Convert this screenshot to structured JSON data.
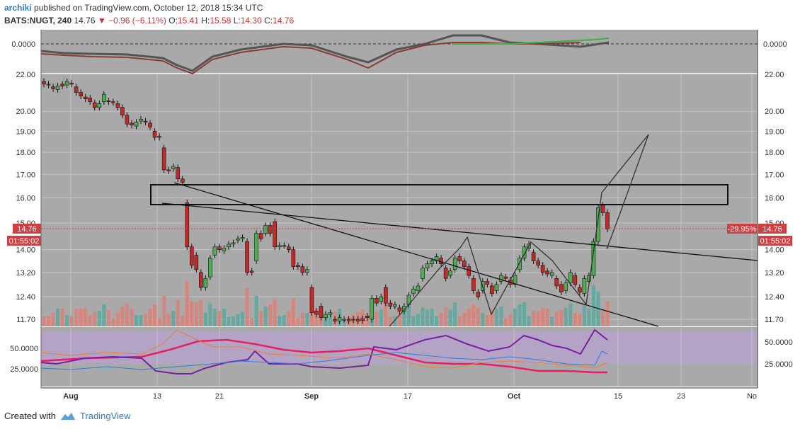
{
  "header": {
    "user": "archiki",
    "published": "published on TradingView.com, October 12, 2018 15:34 UTC",
    "symbol": "BATS:NUGT, 240",
    "last": "14.76",
    "change": "−0.96 (−6.11%)",
    "o_label": "O:",
    "o": "15.41",
    "h_label": "H:",
    "h": "15.58",
    "l_label": "L:",
    "l": "14.30",
    "c_label": "C:",
    "c": "14.76"
  },
  "footer": {
    "created_with": "Created with",
    "brand": "TradingView"
  },
  "colors": {
    "panel_bg": "#a9a9a9",
    "up_candle": "#4caf50",
    "down_candle": "#c62828",
    "vol_up": "#5fa89e",
    "vol_down": "#d9837a",
    "rsi_band": "#b39ddb",
    "price_line": "#d04040"
  },
  "chart_data": {
    "type": "candlestick",
    "symbol": "BATS:NUGT",
    "interval": "240",
    "x_tick_labels": [
      "Aug",
      "13",
      "21",
      "Sep",
      "17",
      "Oct",
      "15",
      "23",
      "No"
    ],
    "y_tick_labels": [
      "22.00",
      "20.00",
      "19.00",
      "18.00",
      "17.00",
      "16.00",
      "15.00",
      "14.00",
      "13.20",
      "12.40",
      "11.70"
    ],
    "ylim": [
      11.5,
      22.2
    ],
    "scale": "log",
    "last_price_label": "14.76",
    "countdown_label": "01:55:02",
    "change_badge": "-29.95%",
    "top_indicator": {
      "zero_label": "0.0000"
    },
    "bottom_indicator": {
      "labels": [
        "50.0000",
        "25.0000"
      ],
      "band": [
        25,
        55
      ]
    },
    "candles": [
      [
        21.6,
        21.45
      ],
      [
        21.45,
        21.4
      ],
      [
        21.3,
        21.2
      ],
      [
        21.15,
        21.35
      ],
      [
        21.45,
        21.35
      ],
      [
        21.4,
        21.6
      ],
      [
        21.5,
        21.45
      ],
      [
        21.3,
        21.0
      ],
      [
        21.0,
        20.8
      ],
      [
        20.75,
        20.65
      ],
      [
        20.7,
        20.5
      ],
      [
        20.45,
        20.2
      ],
      [
        20.2,
        20.4
      ],
      [
        20.5,
        20.9
      ],
      [
        20.55,
        20.5
      ],
      [
        20.5,
        20.45
      ],
      [
        20.4,
        20.2
      ],
      [
        20.2,
        19.8
      ],
      [
        19.8,
        19.35
      ],
      [
        19.4,
        19.3
      ],
      [
        19.25,
        19.45
      ],
      [
        19.5,
        19.6
      ],
      [
        19.5,
        19.45
      ],
      [
        19.4,
        19.2
      ],
      [
        19.0,
        18.7
      ],
      [
        18.75,
        18.7
      ],
      [
        18.2,
        17.2
      ],
      [
        17.2,
        17.15
      ],
      [
        17.25,
        17.35
      ],
      [
        17.3,
        16.8
      ],
      [
        16.8,
        16.65
      ],
      [
        15.8,
        14.1
      ],
      [
        14.1,
        13.45
      ],
      [
        13.8,
        13.3
      ],
      [
        13.2,
        12.7
      ],
      [
        12.7,
        13.0
      ],
      [
        13.05,
        13.7
      ],
      [
        13.8,
        14.1
      ],
      [
        14.1,
        14.0
      ],
      [
        13.95,
        14.05
      ],
      [
        14.1,
        14.2
      ],
      [
        14.2,
        14.25
      ],
      [
        14.35,
        14.4
      ],
      [
        14.4,
        14.45
      ],
      [
        14.3,
        13.2
      ],
      [
        13.25,
        13.2
      ],
      [
        13.6,
        14.6
      ],
      [
        14.6,
        14.4
      ],
      [
        14.6,
        14.9
      ],
      [
        14.9,
        14.6
      ],
      [
        15.05,
        14.1
      ],
      [
        14.1,
        14.15
      ],
      [
        14.15,
        14.15
      ],
      [
        14.1,
        14.0
      ],
      [
        14.0,
        13.4
      ],
      [
        13.45,
        13.4
      ],
      [
        13.4,
        13.2
      ],
      [
        13.2,
        13.3
      ],
      [
        12.7,
        11.9
      ],
      [
        11.95,
        11.85
      ],
      [
        12.1,
        11.75
      ],
      [
        11.75,
        11.85
      ],
      [
        11.85,
        11.9
      ],
      [
        11.7,
        11.65
      ],
      [
        11.65,
        11.75
      ],
      [
        11.7,
        11.7
      ],
      [
        11.7,
        11.65
      ],
      [
        11.7,
        11.68
      ],
      [
        11.7,
        11.65
      ],
      [
        11.72,
        11.66
      ],
      [
        11.8,
        11.75
      ],
      [
        11.7,
        12.35
      ],
      [
        12.35,
        12.2
      ],
      [
        12.25,
        12.4
      ],
      [
        12.7,
        12.2
      ],
      [
        12.2,
        12.1
      ],
      [
        12.1,
        12.15
      ],
      [
        12.05,
        11.95
      ],
      [
        11.95,
        12.1
      ],
      [
        12.15,
        12.45
      ],
      [
        12.5,
        12.65
      ],
      [
        12.6,
        12.75
      ],
      [
        13.0,
        13.35
      ],
      [
        13.35,
        13.5
      ],
      [
        13.5,
        13.6
      ],
      [
        13.6,
        13.75
      ],
      [
        13.7,
        13.5
      ],
      [
        13.35,
        13.0
      ],
      [
        13.1,
        13.25
      ],
      [
        13.3,
        13.7
      ],
      [
        13.75,
        13.6
      ],
      [
        13.6,
        13.4
      ],
      [
        13.4,
        13.1
      ],
      [
        13.0,
        12.6
      ],
      [
        12.55,
        12.4
      ],
      [
        12.6,
        12.9
      ],
      [
        12.9,
        12.8
      ],
      [
        12.75,
        12.5
      ],
      [
        12.6,
        12.8
      ],
      [
        12.9,
        13.1
      ],
      [
        13.05,
        13.0
      ],
      [
        12.95,
        12.8
      ],
      [
        12.8,
        13.1
      ],
      [
        13.3,
        13.7
      ],
      [
        13.7,
        14.1
      ],
      [
        14.05,
        14.2
      ],
      [
        13.9,
        13.6
      ],
      [
        13.6,
        13.45
      ],
      [
        13.45,
        13.2
      ],
      [
        13.25,
        13.15
      ],
      [
        13.1,
        13.2
      ],
      [
        13.0,
        12.75
      ],
      [
        12.8,
        12.55
      ],
      [
        12.6,
        12.85
      ],
      [
        12.85,
        13.2
      ],
      [
        13.1,
        12.8
      ],
      [
        12.7,
        12.55
      ],
      [
        12.5,
        13.0
      ],
      [
        12.9,
        13.1
      ],
      [
        13.1,
        14.3
      ],
      [
        14.3,
        15.6
      ],
      [
        15.7,
        15.4
      ],
      [
        15.41,
        14.76
      ]
    ]
  }
}
